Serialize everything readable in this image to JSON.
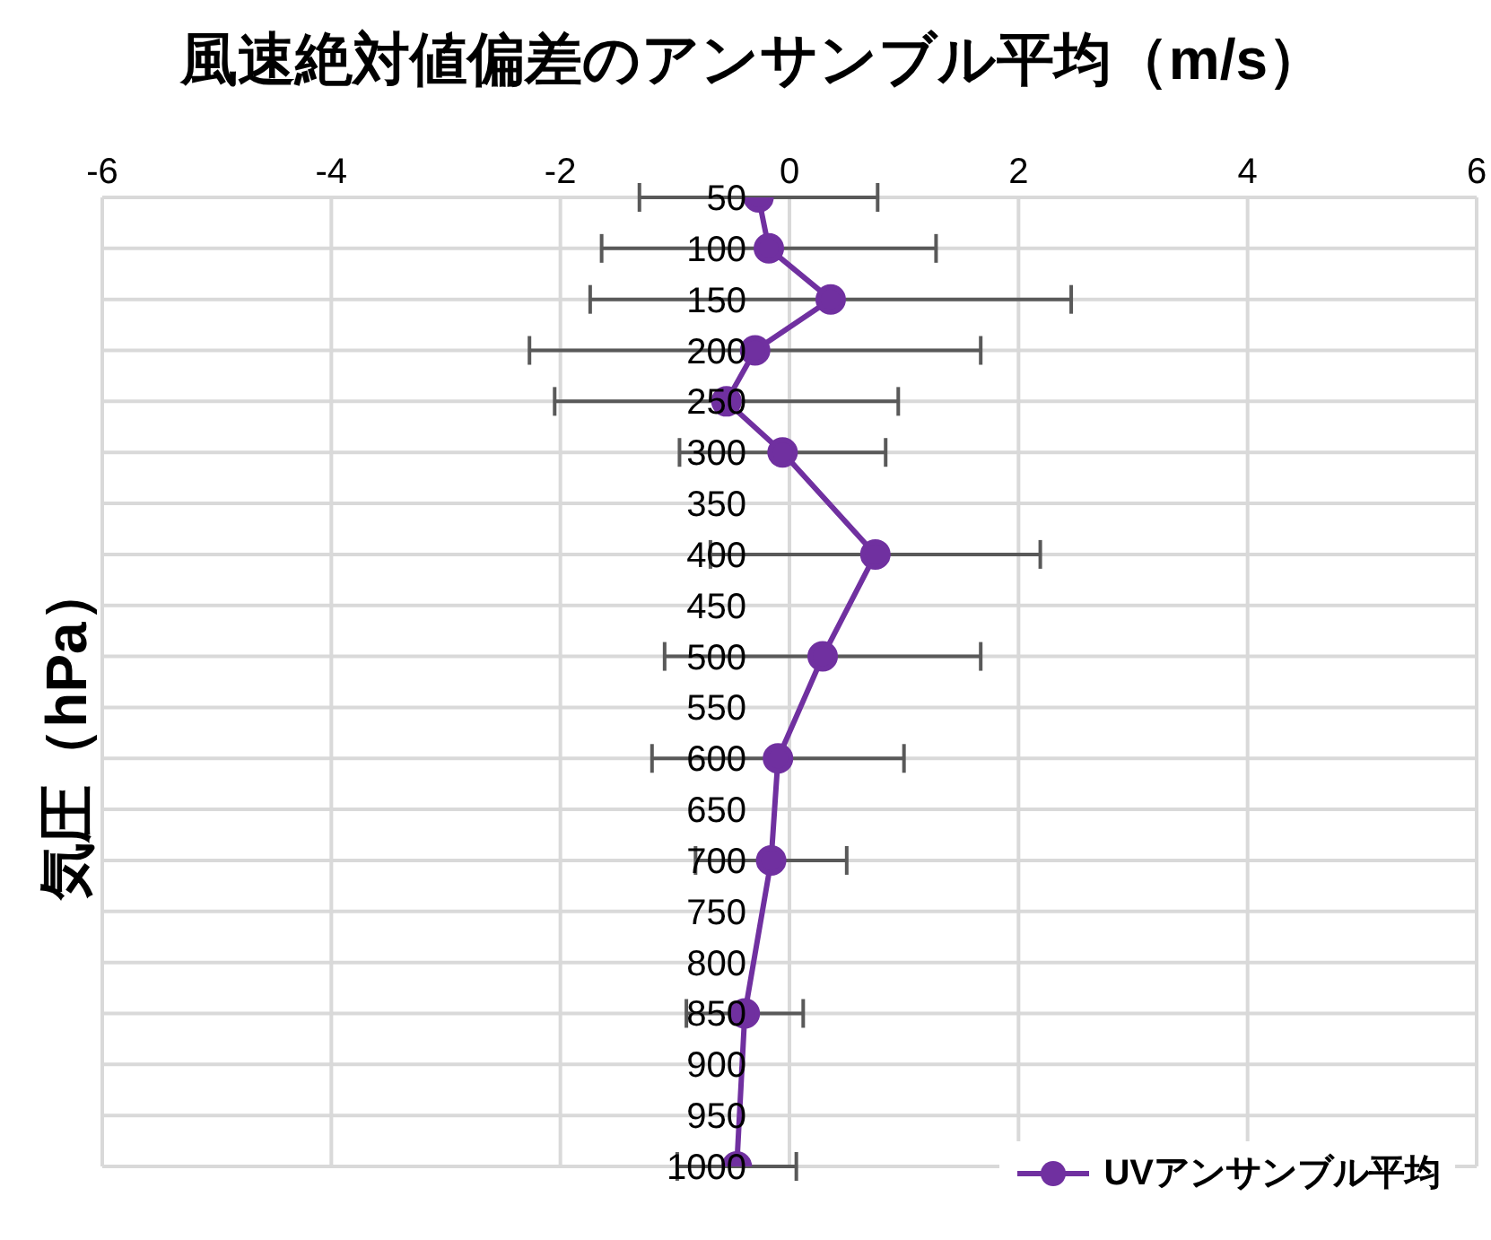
{
  "chart_data": {
    "type": "line",
    "title": "風速絶対値偏差のアンサンブル平均（m/s）",
    "ylabel": "気圧（hPa）",
    "x": [
      50,
      100,
      150,
      200,
      250,
      300,
      400,
      500,
      600,
      700,
      850,
      1000
    ],
    "series": [
      {
        "name": "UVアンサンブル平均",
        "color": "#7030a0",
        "values": [
          -0.27,
          -0.18,
          0.36,
          -0.3,
          -0.55,
          -0.06,
          0.75,
          0.29,
          -0.1,
          -0.16,
          -0.39,
          -0.46
        ],
        "errors": [
          1.04,
          1.46,
          2.1,
          1.97,
          1.5,
          0.9,
          1.44,
          1.38,
          1.1,
          0.66,
          0.51,
          0.52
        ]
      }
    ],
    "orientation": "horizontal",
    "xlim": [
      -6,
      6
    ],
    "xticks": [
      -6,
      -4,
      -2,
      0,
      2,
      4,
      6
    ],
    "ylim": [
      1000,
      50
    ],
    "yticks": [
      50,
      100,
      150,
      200,
      250,
      300,
      350,
      400,
      450,
      500,
      550,
      600,
      650,
      700,
      750,
      800,
      850,
      900,
      950,
      1000
    ],
    "grid": true,
    "legend": "bottom right",
    "marker": "circle",
    "line_style": "solid"
  }
}
